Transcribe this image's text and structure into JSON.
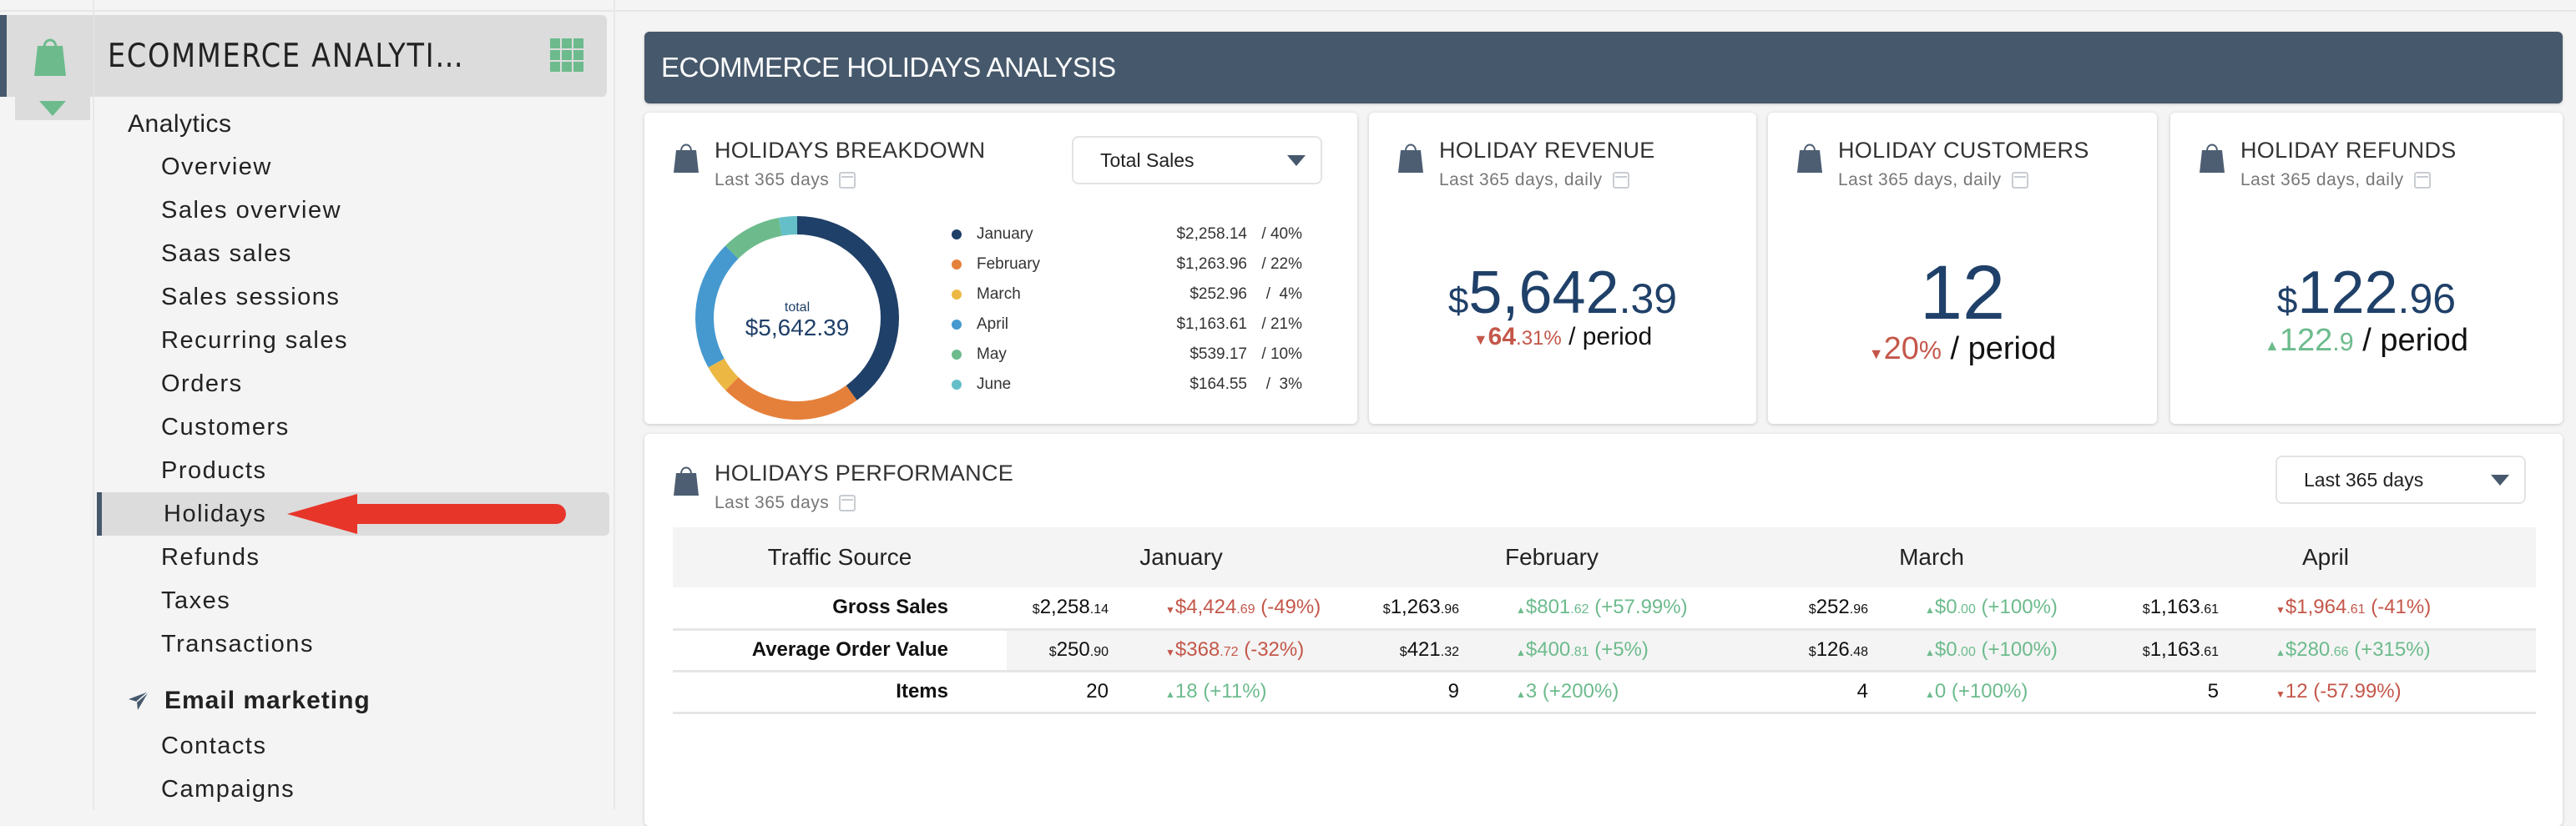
{
  "sidebar": {
    "brand_title": "ECOMMERCE ANALYTI…",
    "groups": [
      {
        "label": "Analytics",
        "items": [
          "Overview",
          "Sales overview",
          "Saas sales",
          "Sales sessions",
          "Recurring sales",
          "Orders",
          "Customers",
          "Products",
          "Holidays",
          "Refunds",
          "Taxes",
          "Transactions"
        ],
        "active": "Holidays"
      },
      {
        "label": "Email marketing",
        "icon": "paper-plane-icon",
        "items": [
          "Contacts",
          "Campaigns"
        ]
      }
    ]
  },
  "header": {
    "title": "ECOMMERCE HOLIDAYS ANALYSIS"
  },
  "breakdown": {
    "title": "HOLIDAYS BREAKDOWN",
    "subtitle": "Last 365 days",
    "select_value": "Total Sales",
    "center_label": "total",
    "center_value": "$5,642.39",
    "legend": [
      {
        "label": "January",
        "value": "$2,258.14",
        "pct": "/ 40%"
      },
      {
        "label": "February",
        "value": "$1,263.96",
        "pct": "/ 22%"
      },
      {
        "label": "March",
        "value": "$252.96",
        "pct": "/  4%"
      },
      {
        "label": "April",
        "value": "$1,163.61",
        "pct": "/ 21%"
      },
      {
        "label": "May",
        "value": "$539.17",
        "pct": "/ 10%"
      },
      {
        "label": "June",
        "value": "$164.55",
        "pct": "/  3%"
      }
    ]
  },
  "chart_data": {
    "type": "pie",
    "title": "HOLIDAYS BREAKDOWN",
    "categories": [
      "January",
      "February",
      "March",
      "April",
      "May",
      "June"
    ],
    "values": [
      2258.14,
      1263.96,
      252.96,
      1163.61,
      539.17,
      164.55
    ],
    "percent": [
      40,
      22,
      4,
      21,
      10,
      3
    ],
    "colors": [
      "#1f4068",
      "#e5803a",
      "#ecb843",
      "#4599cf",
      "#6dbb8d",
      "#65bfc9"
    ],
    "total": 5642.39,
    "donut": true
  },
  "kpis": [
    {
      "title": "HOLIDAY REVENUE",
      "subtitle": "Last 365 days, daily",
      "currency": "$",
      "value_int": "5,642",
      "value_dec": ".39",
      "delta_dir": "down",
      "delta_int": "64",
      "delta_dec": ".31%",
      "delta_suffix": "/ period"
    },
    {
      "title": "HOLIDAY CUSTOMERS",
      "subtitle": "Last 365 days, daily",
      "currency": "",
      "value_int": "12",
      "value_dec": "",
      "delta_dir": "down",
      "delta_int": "20",
      "delta_dec": "%",
      "delta_suffix": "/ period"
    },
    {
      "title": "HOLIDAY REFUNDS",
      "subtitle": "Last 365 days, daily",
      "currency": "$",
      "value_int": "122",
      "value_dec": ".96",
      "delta_dir": "up",
      "delta_int": "122",
      "delta_dec": ".9",
      "delta_suffix": "/ period"
    }
  ],
  "performance": {
    "title": "HOLIDAYS PERFORMANCE",
    "subtitle": "Last 365 days",
    "select_value": "Last 365 days",
    "columns": [
      "Traffic Source",
      "January",
      "February",
      "March",
      "April"
    ],
    "rows": [
      {
        "label": "Gross Sales",
        "cells": [
          {
            "cur": "$",
            "main": "2,258",
            "dec": ".14",
            "dir": "down",
            "chg_main": "$4,424",
            "chg_dec": ".69",
            "chg_pct": "(-49%)"
          },
          {
            "cur": "$",
            "main": "1,263",
            "dec": ".96",
            "dir": "up",
            "chg_main": "$801",
            "chg_dec": ".62",
            "chg_pct": "(+57.99%)"
          },
          {
            "cur": "$",
            "main": "252",
            "dec": ".96",
            "dir": "up",
            "chg_main": "$0",
            "chg_dec": ".00",
            "chg_pct": "(+100%)"
          },
          {
            "cur": "$",
            "main": "1,163",
            "dec": ".61",
            "dir": "down",
            "chg_main": "$1,964",
            "chg_dec": ".61",
            "chg_pct": "(-41%)"
          }
        ]
      },
      {
        "label": "Average Order Value",
        "cells": [
          {
            "cur": "$",
            "main": "250",
            "dec": ".90",
            "dir": "down",
            "chg_main": "$368",
            "chg_dec": ".72",
            "chg_pct": "(-32%)"
          },
          {
            "cur": "$",
            "main": "421",
            "dec": ".32",
            "dir": "up",
            "chg_main": "$400",
            "chg_dec": ".81",
            "chg_pct": "(+5%)"
          },
          {
            "cur": "$",
            "main": "126",
            "dec": ".48",
            "dir": "up",
            "chg_main": "$0",
            "chg_dec": ".00",
            "chg_pct": "(+100%)"
          },
          {
            "cur": "$",
            "main": "1,163",
            "dec": ".61",
            "dir": "up",
            "chg_main": "$280",
            "chg_dec": ".66",
            "chg_pct": "(+315%)"
          }
        ]
      },
      {
        "label": "Items",
        "cells": [
          {
            "cur": "",
            "main": "20",
            "dec": "",
            "dir": "up",
            "chg_main": "18",
            "chg_dec": "",
            "chg_pct": "(+11%)"
          },
          {
            "cur": "",
            "main": "9",
            "dec": "",
            "dir": "up",
            "chg_main": "3",
            "chg_dec": "",
            "chg_pct": "(+200%)"
          },
          {
            "cur": "",
            "main": "4",
            "dec": "",
            "dir": "up",
            "chg_main": "0",
            "chg_dec": "",
            "chg_pct": "(+100%)"
          },
          {
            "cur": "",
            "main": "5",
            "dec": "",
            "dir": "down",
            "chg_main": "12",
            "chg_dec": "",
            "chg_pct": "(-57.99%)"
          }
        ]
      }
    ]
  },
  "colors": {
    "accent_dark": "#46586b",
    "value_blue": "#1f4068",
    "positive": "#6dbb8d",
    "negative": "#c4574a",
    "annotation_arrow": "#e8352a"
  }
}
